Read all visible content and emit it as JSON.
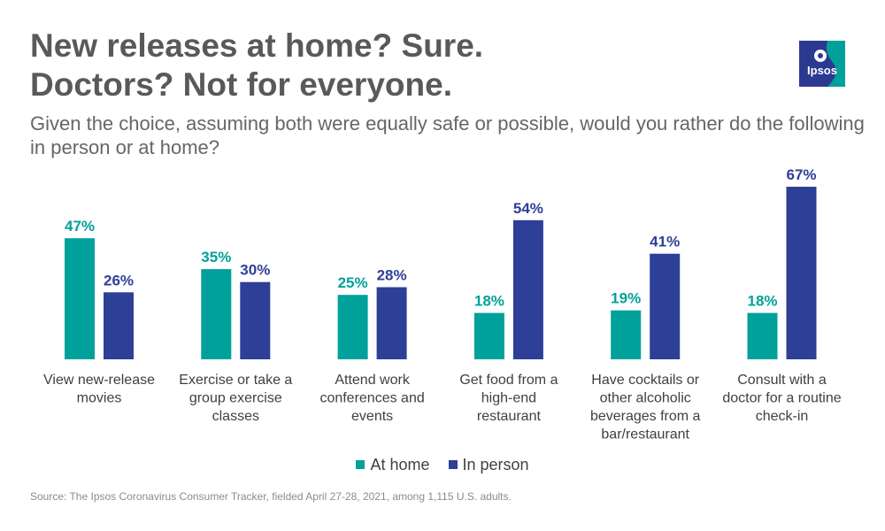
{
  "header": {
    "title_line1": "New releases at home? Sure.",
    "title_line2": "Doctors? Not for everyone.",
    "subtitle": "Given the choice, assuming both were equally safe or possible, would you rather do the following in person or at home?"
  },
  "logo": {
    "text": "Ipsos",
    "color": "#00A19A",
    "accent": "#2B3990"
  },
  "chart_data": {
    "type": "bar",
    "title": "New releases at home? Sure. Doctors? Not for everyone.",
    "categories": [
      [
        "View new-release",
        "movies"
      ],
      [
        "Exercise or take a",
        "group exercise",
        "classes"
      ],
      [
        "Attend work",
        "conferences and",
        "events"
      ],
      [
        "Get food from a",
        "high-end",
        "restaurant"
      ],
      [
        "Have cocktails or",
        "other alcoholic",
        "beverages from a",
        "bar/restaurant"
      ],
      [
        "Consult with a",
        "doctor for a routine",
        "check-in"
      ]
    ],
    "series": [
      {
        "name": "At home",
        "color": "#00A19A",
        "values": [
          47,
          35,
          25,
          18,
          19,
          18
        ]
      },
      {
        "name": "In person",
        "color": "#2E3F97",
        "values": [
          26,
          30,
          28,
          54,
          41,
          67
        ]
      }
    ],
    "value_suffix": "%",
    "ylim": [
      0,
      67
    ],
    "grid": false,
    "legend_position": "bottom"
  },
  "legend": {
    "items": [
      "At home",
      "In person"
    ]
  },
  "source": "Source: The Ipsos Coronavirus Consumer Tracker, fielded April 27-28, 2021, among 1,115 U.S. adults."
}
